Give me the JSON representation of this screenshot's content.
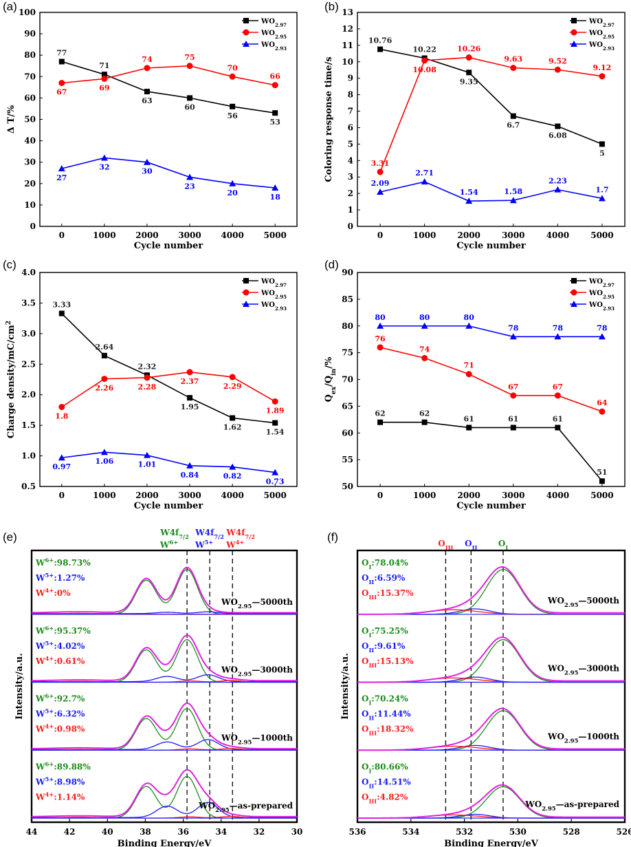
{
  "figure": {
    "panel_labels": [
      "(a)",
      "(b)",
      "(c)",
      "(d)",
      "(e)",
      "(f)"
    ]
  },
  "chart_data": [
    {
      "id": "a",
      "type": "line",
      "title": "",
      "xlabel": "Cycle number",
      "ylabel": "Δ T/%",
      "categories": [
        "0",
        "1000",
        "2000",
        "3000",
        "4000",
        "5000"
      ],
      "ylim": [
        0,
        100
      ],
      "yticks": [
        0,
        10,
        20,
        30,
        40,
        50,
        60,
        70,
        80,
        90,
        100
      ],
      "legend_position": "top-right",
      "series": [
        {
          "name": "WO2.97",
          "name_base": "WO",
          "name_sub": "2.97",
          "color": "#000000",
          "marker": "square",
          "values": [
            77,
            71,
            63,
            60,
            56,
            53
          ],
          "labels": [
            "77",
            "71",
            "63",
            "60",
            "56",
            "53"
          ],
          "label_pos": [
            "above",
            "above",
            "below",
            "below",
            "below",
            "below"
          ]
        },
        {
          "name": "WO2.95",
          "name_base": "WO",
          "name_sub": "2.95",
          "color": "#ff0000",
          "marker": "circle",
          "values": [
            67,
            69,
            74,
            75,
            70,
            66
          ],
          "labels": [
            "67",
            "69",
            "74",
            "75",
            "70",
            "66"
          ],
          "label_pos": [
            "below",
            "below",
            "above",
            "above",
            "above",
            "above"
          ]
        },
        {
          "name": "WO2.93",
          "name_base": "WO",
          "name_sub": "2.93",
          "color": "#0000ff",
          "marker": "triangle",
          "values": [
            27,
            32,
            30,
            23,
            20,
            18
          ],
          "labels": [
            "27",
            "32",
            "30",
            "23",
            "20",
            "18"
          ],
          "label_pos": [
            "below",
            "below",
            "below",
            "below",
            "below",
            "below"
          ]
        }
      ]
    },
    {
      "id": "b",
      "type": "line",
      "title": "",
      "xlabel": "Cycle number",
      "ylabel": "Coloring response time/s",
      "categories": [
        "0",
        "1000",
        "2000",
        "3000",
        "4000",
        "5000"
      ],
      "ylim": [
        0,
        13
      ],
      "yticks": [
        0,
        1,
        2,
        3,
        4,
        5,
        6,
        7,
        8,
        9,
        10,
        11,
        12,
        13
      ],
      "legend_position": "top-right",
      "series": [
        {
          "name": "WO2.97",
          "name_base": "WO",
          "name_sub": "2.97",
          "color": "#000000",
          "marker": "square",
          "values": [
            10.76,
            10.22,
            9.35,
            6.7,
            6.08,
            5
          ],
          "labels": [
            "10.76",
            "10.22",
            "9.35",
            "6.7",
            "6.08",
            "5"
          ],
          "label_pos": [
            "above",
            "above",
            "below",
            "below",
            "below",
            "below"
          ]
        },
        {
          "name": "WO2.95",
          "name_base": "WO",
          "name_sub": "2.95",
          "color": "#ff0000",
          "marker": "circle",
          "values": [
            3.31,
            10.08,
            10.26,
            9.63,
            9.52,
            9.12
          ],
          "labels": [
            "3.31",
            "10.08",
            "10.26",
            "9.63",
            "9.52",
            "9.12"
          ],
          "label_pos": [
            "above",
            "below",
            "above",
            "above",
            "above",
            "above"
          ]
        },
        {
          "name": "WO2.93",
          "name_base": "WO",
          "name_sub": "2.93",
          "color": "#0000ff",
          "marker": "triangle",
          "values": [
            2.09,
            2.71,
            1.54,
            1.58,
            2.23,
            1.7
          ],
          "labels": [
            "2.09",
            "2.71",
            "1.54",
            "1.58",
            "2.23",
            "1.7"
          ],
          "label_pos": [
            "above",
            "above",
            "above",
            "above",
            "above",
            "above"
          ]
        }
      ]
    },
    {
      "id": "c",
      "type": "line",
      "title": "",
      "xlabel": "Cycle number",
      "ylabel": "Charge density/mC/cm²",
      "categories": [
        "0",
        "1000",
        "2000",
        "3000",
        "4000",
        "5000"
      ],
      "ylim": [
        0.5,
        4.0
      ],
      "yticks": [
        "0.5",
        "1.0",
        "1.5",
        "2.0",
        "2.5",
        "3.0",
        "3.5",
        "4.0"
      ],
      "legend_position": "top-right",
      "series": [
        {
          "name": "WO2.97",
          "name_base": "WO",
          "name_sub": "2.97",
          "color": "#000000",
          "marker": "square",
          "values": [
            3.33,
            2.64,
            2.32,
            1.95,
            1.62,
            1.54
          ],
          "labels": [
            "3.33",
            "2.64",
            "2.32",
            "1.95",
            "1.62",
            "1.54"
          ],
          "label_pos": [
            "above",
            "above",
            "above",
            "below",
            "below",
            "below"
          ]
        },
        {
          "name": "WO2.95",
          "name_base": "WO",
          "name_sub": "2.95",
          "color": "#ff0000",
          "marker": "circle",
          "values": [
            1.8,
            2.26,
            2.28,
            2.37,
            2.29,
            1.89
          ],
          "labels": [
            "1.8",
            "2.26",
            "2.28",
            "2.37",
            "2.29",
            "1.89"
          ],
          "label_pos": [
            "below",
            "below",
            "below",
            "below",
            "below",
            "below"
          ]
        },
        {
          "name": "WO2.93",
          "name_base": "WO",
          "name_sub": "2.93",
          "color": "#0000ff",
          "marker": "triangle",
          "values": [
            0.97,
            1.06,
            1.01,
            0.84,
            0.82,
            0.73
          ],
          "labels": [
            "0.97",
            "1.06",
            "1.01",
            "0.84",
            "0.82",
            "0.73"
          ],
          "label_pos": [
            "below",
            "below",
            "below",
            "below",
            "below",
            "below"
          ]
        }
      ]
    },
    {
      "id": "d",
      "type": "line",
      "title": "",
      "xlabel": "Cycle number",
      "ylabel": "Qex/Qin/%",
      "categories": [
        "0",
        "1000",
        "2000",
        "3000",
        "4000",
        "5000"
      ],
      "ylim": [
        50,
        90
      ],
      "yticks": [
        50,
        55,
        60,
        65,
        70,
        75,
        80,
        85,
        90
      ],
      "legend_position": "top-right",
      "series": [
        {
          "name": "WO2.97",
          "name_base": "WO",
          "name_sub": "2.97",
          "color": "#000000",
          "marker": "square",
          "values": [
            62,
            62,
            61,
            61,
            61,
            51
          ],
          "labels": [
            "62",
            "62",
            "61",
            "61",
            "61",
            "51"
          ],
          "label_pos": [
            "above",
            "above",
            "above",
            "above",
            "above",
            "above"
          ]
        },
        {
          "name": "WO2.95",
          "name_base": "WO",
          "name_sub": "2.95",
          "color": "#ff0000",
          "marker": "circle",
          "values": [
            76,
            74,
            71,
            67,
            67,
            64
          ],
          "labels": [
            "76",
            "74",
            "71",
            "67",
            "67",
            "64"
          ],
          "label_pos": [
            "above",
            "above",
            "above",
            "above",
            "above",
            "above"
          ]
        },
        {
          "name": "WO2.93",
          "name_base": "WO",
          "name_sub": "2.93",
          "color": "#0000ff",
          "marker": "triangle",
          "values": [
            80,
            80,
            80,
            78,
            78,
            78
          ],
          "labels": [
            "80",
            "80",
            "80",
            "78",
            "78",
            "78"
          ],
          "label_pos": [
            "above",
            "above",
            "above",
            "above",
            "above",
            "above"
          ]
        }
      ]
    },
    {
      "id": "e",
      "type": "line",
      "subtype": "xps-spectra",
      "xlabel": "Binding Energy/eV",
      "ylabel": "Intensity/a.u.",
      "xlim": [
        44,
        30
      ],
      "xticks": [
        "44",
        "42",
        "40",
        "38",
        "36",
        "34",
        "32",
        "30"
      ],
      "reference_lines": [
        {
          "x": 35.8,
          "top_label": "W4f7/2",
          "top_base": "W4f",
          "top_sub": "7/2",
          "label": "W6+",
          "base": "W",
          "sup": "6+",
          "color": "#1a8a1a"
        },
        {
          "x": 34.6,
          "top_label": "W4f7/2",
          "top_base": "W4f",
          "top_sub": "7/2",
          "label": "W5+",
          "base": "W",
          "sup": "5+",
          "color": "#1a1aff"
        },
        {
          "x": 33.4,
          "top_label": "W4f7/2",
          "top_base": "W4f",
          "top_sub": "7/2",
          "label": "W4+",
          "base": "W",
          "sup": "4+",
          "color": "#ff1a1a"
        }
      ],
      "spectra": [
        {
          "sample": "WO2.95—5000th",
          "sample_base": "WO",
          "sample_sub": "2.95",
          "sample_suffix": "—5000th",
          "components": [
            {
              "species": "W6+",
              "base": "W",
              "sup": "6+",
              "value": ":98.73%",
              "color": "#1a8a1a"
            },
            {
              "species": "W5+",
              "base": "W",
              "sup": "5+",
              "value": ":1.27%",
              "color": "#1a1aff"
            },
            {
              "species": "W4+",
              "base": "W",
              "sup": "4+",
              "value": ":0%",
              "color": "#ff1a1a"
            }
          ],
          "peak_height": 1.0,
          "w5": 0.01,
          "w4": 0.0
        },
        {
          "sample": "WO2.95—3000th",
          "sample_base": "WO",
          "sample_sub": "2.95",
          "sample_suffix": "—3000th",
          "components": [
            {
              "species": "W6+",
              "base": "W",
              "sup": "6+",
              "value": ":95.37%",
              "color": "#1a8a1a"
            },
            {
              "species": "W5+",
              "base": "W",
              "sup": "5+",
              "value": ":4.02%",
              "color": "#1a1aff"
            },
            {
              "species": "W4+",
              "base": "W",
              "sup": "4+",
              "value": ":0.61%",
              "color": "#ff1a1a"
            }
          ],
          "peak_height": 0.95,
          "w5": 0.04,
          "w4": 0.01
        },
        {
          "sample": "WO2.95—1000th",
          "sample_base": "WO",
          "sample_sub": "2.95",
          "sample_suffix": "—1000th",
          "components": [
            {
              "species": "W6+",
              "base": "W",
              "sup": "6+",
              "value": ":92.7%",
              "color": "#1a8a1a"
            },
            {
              "species": "W5+",
              "base": "W",
              "sup": "5+",
              "value": ":6.32%",
              "color": "#1a1aff"
            },
            {
              "species": "W4+",
              "base": "W",
              "sup": "4+",
              "value": ":0.98%",
              "color": "#ff1a1a"
            }
          ],
          "peak_height": 0.93,
          "w5": 0.06,
          "w4": 0.01
        },
        {
          "sample": "WO2.95—as-prepared",
          "sample_base": "WO",
          "sample_sub": "2.95",
          "sample_suffix": "—as-prepared",
          "components": [
            {
              "species": "W6+",
              "base": "W",
              "sup": "6+",
              "value": ":89.88%",
              "color": "#1a8a1a"
            },
            {
              "species": "W5+",
              "base": "W",
              "sup": "5+",
              "value": ":8.98%",
              "color": "#1a1aff"
            },
            {
              "species": "W4+",
              "base": "W",
              "sup": "4+",
              "value": ":1.14%",
              "color": "#ff1a1a"
            }
          ],
          "peak_height": 0.93,
          "w5": 0.09,
          "w4": 0.01
        }
      ]
    },
    {
      "id": "f",
      "type": "line",
      "subtype": "xps-spectra",
      "xlabel": "Binding Energy/eV",
      "ylabel": "Intensity/a.u.",
      "xlim": [
        536,
        526
      ],
      "xticks": [
        "536",
        "534",
        "532",
        "530",
        "528",
        "526"
      ],
      "reference_lines": [
        {
          "x": 532.7,
          "label": "OIII",
          "base": "O",
          "sub": "III",
          "color": "#ff1a1a"
        },
        {
          "x": 531.75,
          "label": "OII",
          "base": "O",
          "sub": "II",
          "color": "#1a1aff"
        },
        {
          "x": 530.55,
          "label": "OI",
          "base": "O",
          "sub": "I",
          "color": "#1a8a1a"
        }
      ],
      "spectra": [
        {
          "sample": "WO2.95—5000th",
          "sample_base": "WO",
          "sample_sub": "2.95",
          "sample_suffix": "—5000th",
          "components": [
            {
              "species": "OI",
              "base": "O",
              "sub": "I",
              "value": ":78.04%",
              "color": "#1a8a1a"
            },
            {
              "species": "OII",
              "base": "O",
              "sub": "II",
              "value": ":6.59%",
              "color": "#1a1aff"
            },
            {
              "species": "OIII",
              "base": "O",
              "sub": "III",
              "value": ":15.37%",
              "color": "#ff1a1a"
            }
          ],
          "peak_height": 1.0
        },
        {
          "sample": "WO2.95—3000th",
          "sample_base": "WO",
          "sample_sub": "2.95",
          "sample_suffix": "—3000th",
          "components": [
            {
              "species": "OI",
              "base": "O",
              "sub": "I",
              "value": ":75.25%",
              "color": "#1a8a1a"
            },
            {
              "species": "OII",
              "base": "O",
              "sub": "II",
              "value": ":9.61%",
              "color": "#1a1aff"
            },
            {
              "species": "OIII",
              "base": "O",
              "sub": "III",
              "value": ":15.13%",
              "color": "#ff1a1a"
            }
          ],
          "peak_height": 0.95
        },
        {
          "sample": "WO2.95—1000th",
          "sample_base": "WO",
          "sample_sub": "2.95",
          "sample_suffix": "—1000th",
          "components": [
            {
              "species": "OI",
              "base": "O",
              "sub": "I",
              "value": ":70.24%",
              "color": "#1a8a1a"
            },
            {
              "species": "OII",
              "base": "O",
              "sub": "II",
              "value": ":11.44%",
              "color": "#1a1aff"
            },
            {
              "species": "OIII",
              "base": "O",
              "sub": "III",
              "value": ":18.32%",
              "color": "#ff1a1a"
            }
          ],
          "peak_height": 0.88
        },
        {
          "sample": "WO2.95—as-prepared",
          "sample_base": "WO",
          "sample_sub": "2.95",
          "sample_suffix": "—as-prepared",
          "components": [
            {
              "species": "OI",
              "base": "O",
              "sub": "I",
              "value": ":80.66%",
              "color": "#1a8a1a"
            },
            {
              "species": "OII",
              "base": "O",
              "sub": "II",
              "value": ":14.51%",
              "color": "#1a1aff"
            },
            {
              "species": "OIII",
              "base": "O",
              "sub": "III",
              "value": ":4.82%",
              "color": "#ff1a1a"
            }
          ],
          "peak_height": 0.7
        }
      ]
    }
  ]
}
